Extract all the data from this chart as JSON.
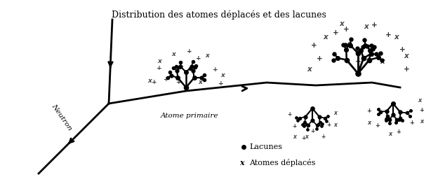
{
  "title": "Distribution des atomes déplacés et des lacunes",
  "title_fontsize": 9,
  "background_color": "#ffffff",
  "legend_lacunes": "Lacunes",
  "legend_deplaces": "Atomes déplacés",
  "neutron_label": "Neutron",
  "atome_label": "Atome primaire",
  "fig_width": 6.24,
  "fig_height": 2.63,
  "dpi": 100
}
